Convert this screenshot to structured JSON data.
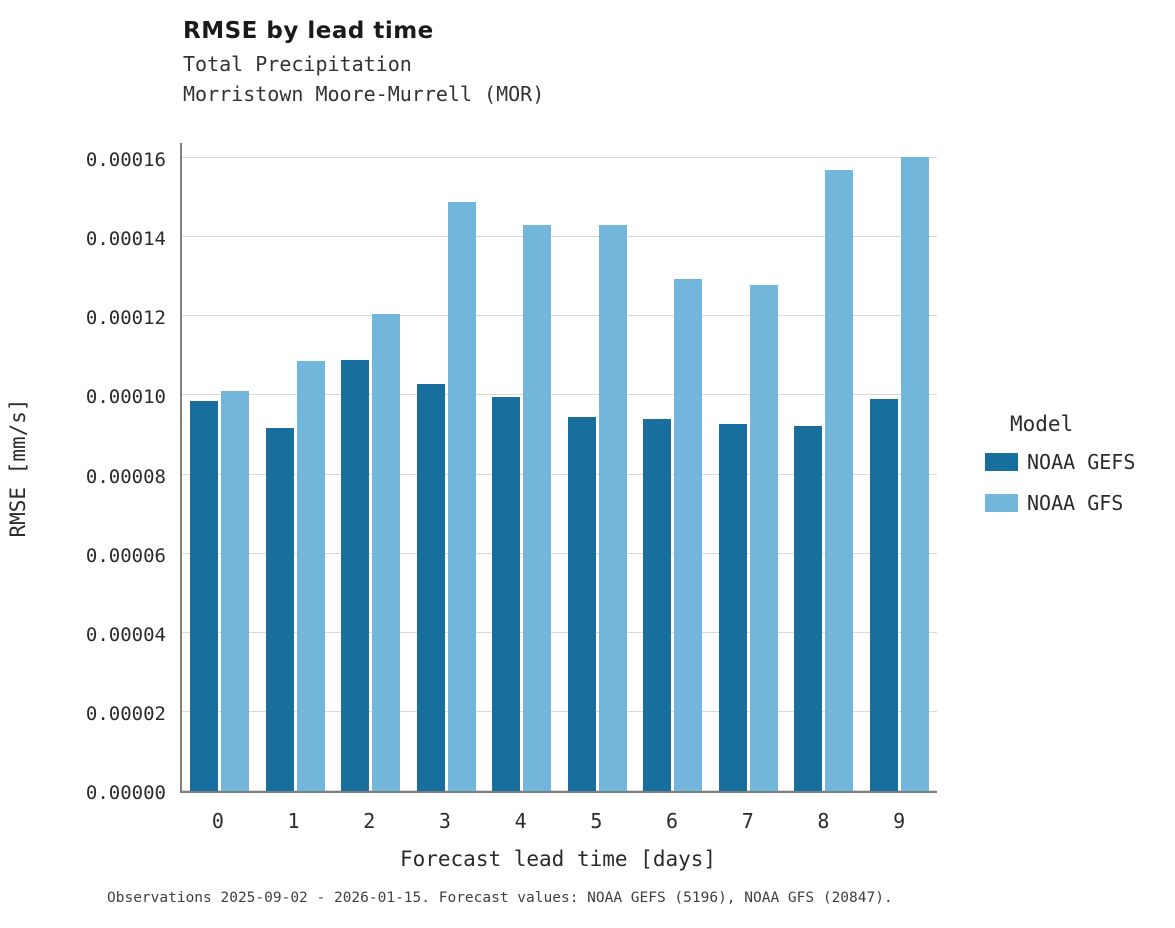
{
  "title": "RMSE by lead time",
  "subtitle_variable": "Total Precipitation",
  "subtitle_station": "Morristown Moore-Murrell (MOR)",
  "caption": "Observations 2025-09-02 - 2026-01-15. Forecast values: NOAA GEFS (5196), NOAA GFS (20847).",
  "colors": {
    "gefs": "#186f9d",
    "gfs": "#73b6db",
    "grid": "#d9d9d9",
    "axis": "#7f7f7f"
  },
  "chart_data": {
    "type": "bar",
    "title": "RMSE by lead time",
    "subtitle": "Total Precipitation — Morristown Moore-Murrell (MOR)",
    "xlabel": "Forecast lead time [days]",
    "ylabel": "RMSE [mm/s]",
    "categories": [
      "0",
      "1",
      "2",
      "3",
      "4",
      "5",
      "6",
      "7",
      "8",
      "9"
    ],
    "series": [
      {
        "name": "NOAA GEFS",
        "color": "#186f9d",
        "values": [
          9.85e-05,
          9.18e-05,
          0.000109,
          0.0001028,
          9.97e-05,
          9.45e-05,
          9.4e-05,
          9.28e-05,
          9.22e-05,
          9.91e-05
        ]
      },
      {
        "name": "NOAA GFS",
        "color": "#73b6db",
        "values": [
          0.000101,
          0.0001086,
          0.0001205,
          0.0001488,
          0.000143,
          0.000143,
          0.0001295,
          0.0001278,
          0.000157,
          0.0001603
        ]
      }
    ],
    "ylim": [
      0,
      0.0001643
    ],
    "yticks": [
      0.0,
      2e-05,
      4e-05,
      6e-05,
      8e-05,
      0.0001,
      0.00012,
      0.00014,
      0.00016
    ],
    "ytick_decimals": 5,
    "grid": "horizontal",
    "legend_title": "Model",
    "legend_position": "right"
  }
}
